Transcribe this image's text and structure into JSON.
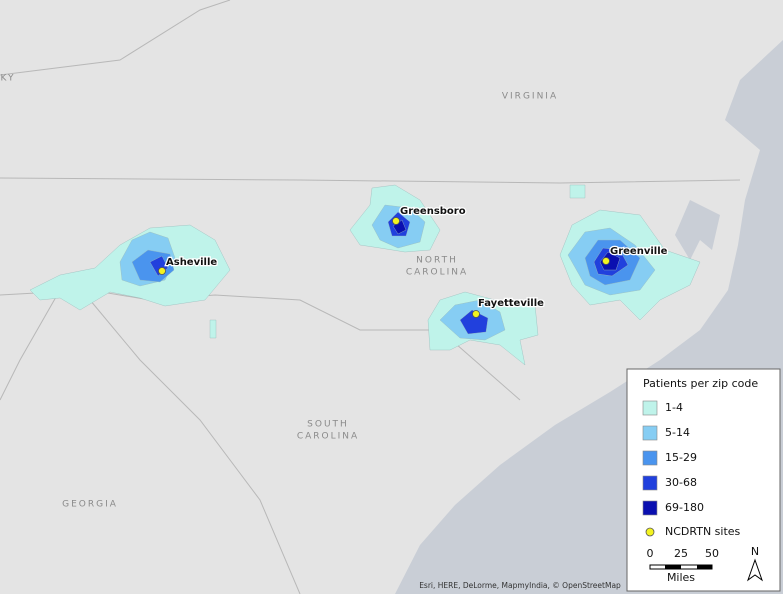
{
  "map": {
    "state_labels": [
      "KY",
      "VIRGINIA",
      "NORTH",
      "CAROLINA",
      "SOUTH",
      "CAROLINA",
      "GEORGIA"
    ],
    "cities": [
      "Asheville",
      "Greensboro",
      "Fayetteville",
      "Greenville"
    ],
    "legend": {
      "title": "Patients per zip code",
      "items": [
        {
          "label": "1-4",
          "color": "#bff3ea"
        },
        {
          "label": "5-14",
          "color": "#86cdf3"
        },
        {
          "label": "15-29",
          "color": "#4a94ee"
        },
        {
          "label": "30-68",
          "color": "#2140dd"
        },
        {
          "label": "69-180",
          "color": "#0a0fb0"
        }
      ],
      "sites": "NCDRTN sites",
      "site_color": "#f3f320"
    },
    "scale": {
      "ticks": [
        0,
        25,
        50
      ],
      "unit": "Miles"
    },
    "north": "N",
    "attribution": "Esri, HERE, DeLorme, MapmyIndia, © OpenStreetMap"
  }
}
